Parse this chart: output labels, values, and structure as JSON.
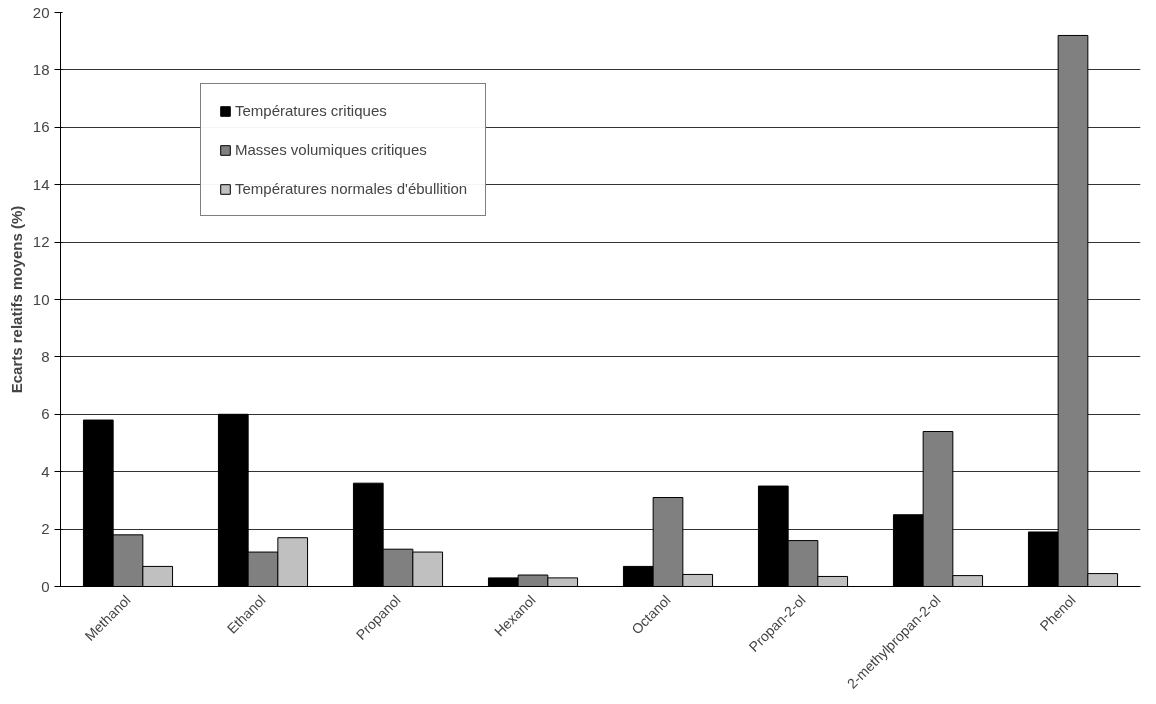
{
  "chart_data": {
    "type": "bar",
    "categories": [
      "Methanol",
      "Ethanol",
      "Propanol",
      "Hexanol",
      "Octanol",
      "Propan-2-ol",
      "2-methylpropan-2-ol",
      "Phenol"
    ],
    "ylabel": "Ecarts relatifs moyens (%)",
    "series": [
      {
        "name": "Températures critiques",
        "color": "#000000",
        "values": [
          5.8,
          6.0,
          3.6,
          0.3,
          0.7,
          3.5,
          2.5,
          1.9
        ]
      },
      {
        "name": "Masses volumiques critiques",
        "color": "#808080",
        "values": [
          1.8,
          1.2,
          1.3,
          0.4,
          3.1,
          1.6,
          5.4,
          19.2
        ]
      },
      {
        "name": "Températures normales d'ébullition",
        "color": "#c0c0c0",
        "values": [
          0.7,
          1.7,
          1.2,
          0.3,
          0.42,
          0.35,
          0.38,
          0.45
        ]
      }
    ],
    "ylim": [
      0,
      20
    ],
    "yticks": [
      0,
      2,
      4,
      6,
      8,
      10,
      12,
      14,
      16,
      18,
      20
    ],
    "grid": "y",
    "legend": "top left"
  }
}
